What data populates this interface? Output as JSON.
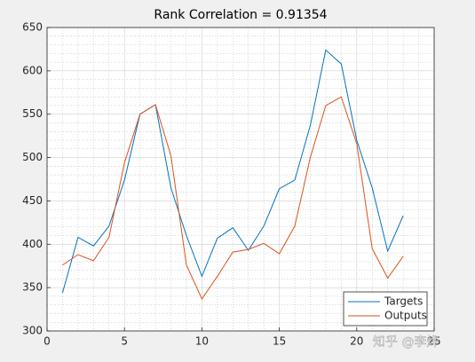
{
  "chart_data": {
    "type": "line",
    "title": "Rank Correlation = 0.91354",
    "x": [
      1,
      2,
      3,
      4,
      5,
      6,
      7,
      8,
      9,
      10,
      11,
      12,
      13,
      14,
      15,
      16,
      17,
      18,
      19,
      20,
      21,
      22,
      23
    ],
    "series": [
      {
        "name": "Targets",
        "color": "#0072bd",
        "values": [
          344,
          408,
          398,
          421,
          474,
          550,
          561,
          465,
          410,
          363,
          407,
          419,
          393,
          421,
          464,
          474,
          537,
          624,
          608,
          520,
          465,
          392,
          433
        ]
      },
      {
        "name": "Outputs",
        "color": "#d95319",
        "values": [
          376,
          388,
          381,
          408,
          494,
          550,
          561,
          502,
          376,
          337,
          363,
          391,
          394,
          401,
          389,
          421,
          500,
          560,
          570,
          516,
          395,
          361,
          386
        ]
      }
    ],
    "xlim": [
      0,
      25
    ],
    "xticks": [
      0,
      5,
      10,
      15,
      20,
      25
    ],
    "ylim": [
      300,
      650
    ],
    "yticks": [
      300,
      350,
      400,
      450,
      500,
      550,
      600,
      650
    ],
    "grid": true,
    "minor_grid": true,
    "legend": "southeast",
    "watermark": "知乎 @李烨"
  }
}
